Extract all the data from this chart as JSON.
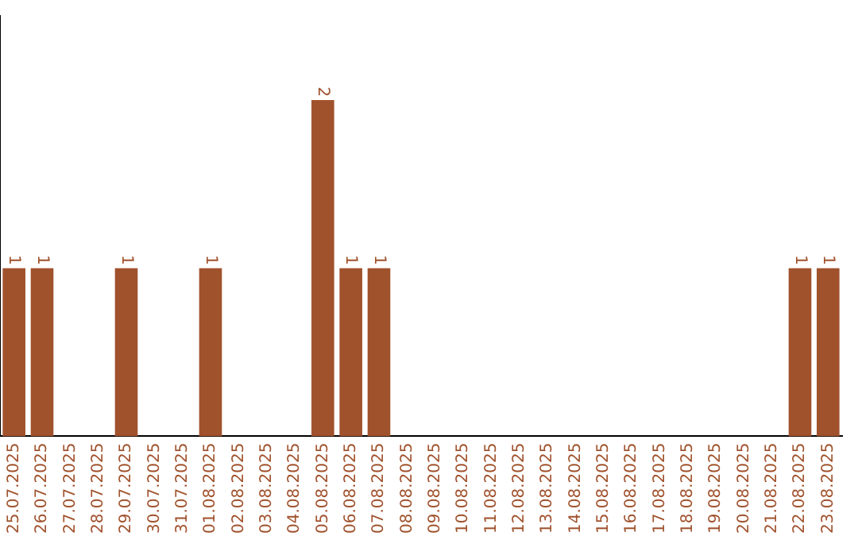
{
  "chart_data": {
    "type": "bar",
    "categories": [
      "25.07.2025",
      "26.07.2025",
      "27.07.2025",
      "28.07.2025",
      "29.07.2025",
      "30.07.2025",
      "31.07.2025",
      "01.08.2025",
      "02.08.2025",
      "03.08.2025",
      "04.08.2025",
      "05.08.2025",
      "06.08.2025",
      "07.08.2025",
      "08.08.2025",
      "09.08.2025",
      "10.08.2025",
      "11.08.2025",
      "12.08.2025",
      "13.08.2025",
      "14.08.2025",
      "15.08.2025",
      "16.08.2025",
      "17.08.2025",
      "18.08.2025",
      "19.08.2025",
      "20.08.2025",
      "21.08.2025",
      "22.08.2025",
      "23.08.2025"
    ],
    "values": [
      1,
      1,
      0,
      0,
      1,
      0,
      0,
      1,
      0,
      0,
      0,
      2,
      1,
      1,
      0,
      0,
      0,
      0,
      0,
      0,
      0,
      0,
      0,
      0,
      0,
      0,
      0,
      0,
      1,
      1
    ],
    "value_labels": [
      "1",
      "1",
      null,
      null,
      "1",
      null,
      null,
      "1",
      null,
      null,
      null,
      "2",
      "1",
      "1",
      null,
      null,
      null,
      null,
      null,
      null,
      null,
      null,
      null,
      null,
      null,
      null,
      null,
      null,
      "1",
      "1"
    ],
    "color": "#a0522d",
    "grid": false,
    "legend": false,
    "tick_labels": "x"
  }
}
